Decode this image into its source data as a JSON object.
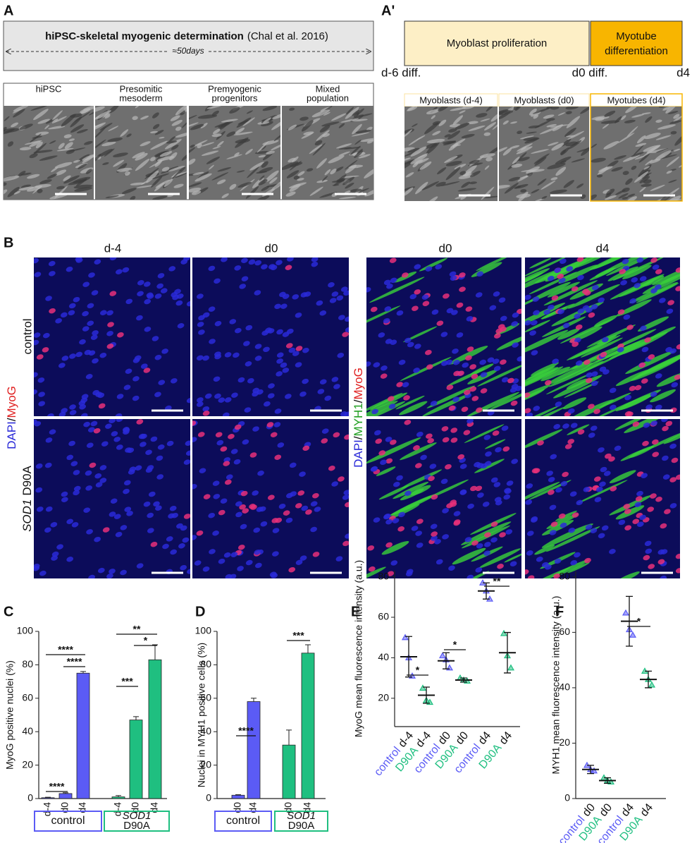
{
  "panelA": {
    "letter": "A",
    "title": "hiPSC-skeletal myogenic determination",
    "citation": "(Chal et al. 2016)",
    "duration": "≈50days",
    "stages": [
      [
        "hiPSC"
      ],
      [
        "Presomitic",
        "mesoderm"
      ],
      [
        "Premyogenic",
        "progenitors"
      ],
      [
        "Mixed",
        "population"
      ]
    ]
  },
  "panelA2": {
    "letter": "A'",
    "phase1": "Myoblast proliferation",
    "phase2": [
      "Myotube",
      "differentiation"
    ],
    "timepoints": [
      "d-6 diff.",
      "d0 diff.",
      "d4"
    ],
    "images": [
      "Myoblasts (d-4)",
      "Myoblasts (d0)",
      "Myotubes (d4)"
    ]
  },
  "panelB": {
    "letter": "B",
    "columns": [
      "d-4",
      "d0",
      "d0",
      "d4"
    ],
    "row_control": "control",
    "row_gene": "SOD1",
    "row_variant": "D90A",
    "stain_left": [
      "DAPI",
      "/",
      "MyoG"
    ],
    "stain_right": [
      "DAPI",
      "/",
      "MYH1",
      "/",
      "MyoG"
    ]
  },
  "chart_data": [
    {
      "type": "bar",
      "label": "C",
      "ylabel": "MyoG positive nuclei (%)",
      "ylim": [
        0,
        100
      ],
      "yticks": [
        0,
        20,
        40,
        60,
        80,
        100
      ],
      "series": [
        {
          "name": "control",
          "color": "#5b5bf5",
          "categories": [
            "d-4",
            "d0",
            "d4"
          ],
          "values": [
            0.5,
            3,
            75
          ],
          "errors": [
            0.3,
            0.5,
            1
          ]
        },
        {
          "gene": "SOD1",
          "name": "D90A",
          "color": "#1fbf80",
          "categories": [
            "d-4",
            "d0",
            "d4"
          ],
          "values": [
            1,
            47,
            83
          ],
          "errors": [
            0.8,
            2,
            9
          ]
        }
      ],
      "annotations": [
        "****",
        "****",
        "****",
        "***",
        "**",
        "*"
      ]
    },
    {
      "type": "bar",
      "label": "D",
      "ylabel": "Nuclei in MYH1 positive cells (%)",
      "ylim": [
        0,
        100
      ],
      "yticks": [
        0,
        20,
        40,
        60,
        80,
        100
      ],
      "series": [
        {
          "name": "control",
          "color": "#5b5bf5",
          "categories": [
            "d0",
            "d4"
          ],
          "values": [
            2,
            58
          ],
          "errors": [
            0.3,
            2
          ]
        },
        {
          "gene": "SOD1",
          "name": "D90A",
          "color": "#1fbf80",
          "categories": [
            "d0",
            "d4"
          ],
          "values": [
            32,
            87
          ],
          "errors": [
            9,
            5
          ]
        }
      ],
      "annotations": [
        "****",
        "***"
      ]
    },
    {
      "type": "scatter",
      "label": "E",
      "ylabel": "MyoG mean fluorescence intensity (a.u.)",
      "ylim": [
        6,
        83
      ],
      "yticks": [
        20,
        40,
        60,
        80
      ],
      "groups": [
        "control",
        "D90A",
        "control",
        "D90A",
        "control",
        "D90A"
      ],
      "categories": [
        "d-4",
        "d-4",
        "d0",
        "d0",
        "d4",
        "d4"
      ],
      "colors": [
        "#5b5bf5",
        "#1fbf80",
        "#5b5bf5",
        "#1fbf80",
        "#5b5bf5",
        "#1fbf80"
      ],
      "values": [
        40.5,
        21.5,
        38.5,
        29,
        73,
        42.5
      ],
      "errors": [
        10,
        4,
        4,
        1,
        4,
        10
      ],
      "points": [
        [
          50,
          40,
          31
        ],
        [
          25,
          19,
          18
        ],
        [
          41,
          39,
          35
        ],
        [
          30,
          29,
          28.5
        ],
        [
          77,
          73,
          69
        ],
        [
          52,
          41,
          35
        ]
      ],
      "annotations": [
        "*",
        "*",
        "**"
      ]
    },
    {
      "type": "scatter",
      "label": "F",
      "ylabel": "MYH1 mean fluorescence intensity (a.u.)",
      "ylim": [
        0,
        82
      ],
      "yticks": [
        0,
        20,
        40,
        60,
        80
      ],
      "groups": [
        "control",
        "D90A",
        "control",
        "D90A"
      ],
      "categories": [
        "d0",
        "d0",
        "d4",
        "d4"
      ],
      "colors": [
        "#5b5bf5",
        "#1fbf80",
        "#5b5bf5",
        "#1fbf80"
      ],
      "values": [
        10.5,
        6.5,
        64,
        43
      ],
      "errors": [
        1.5,
        1,
        9,
        3
      ],
      "points": [
        [
          12,
          10.5,
          10
        ],
        [
          7.5,
          6.5,
          6
        ],
        [
          67,
          61,
          59
        ],
        [
          46,
          43,
          41
        ]
      ],
      "annotations": [
        "*"
      ]
    }
  ]
}
